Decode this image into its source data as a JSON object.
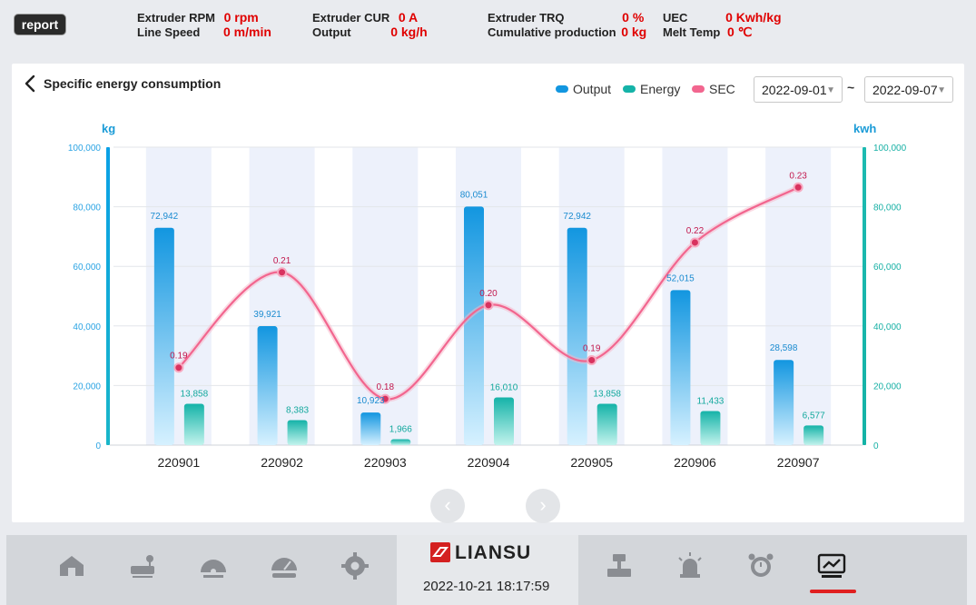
{
  "header": {
    "report_label": "report",
    "stats": [
      {
        "label": "Extruder RPM",
        "value": "0 rpm"
      },
      {
        "label": "Line Speed",
        "value": "0 m/min"
      },
      {
        "label": "Extruder CUR",
        "value": "0 A"
      },
      {
        "label": "Output",
        "value": "0 kg/h"
      },
      {
        "label": "Extruder TRQ",
        "value": "0 %"
      },
      {
        "label": "Cumulative production",
        "value": "0 kg"
      },
      {
        "label": "UEC",
        "value": "0 Kwh/kg"
      },
      {
        "label": "Melt Temp",
        "value": "0 ℃"
      }
    ]
  },
  "page": {
    "title": "Specific energy consumption",
    "back_icon": "chevron-left-icon",
    "legend": [
      "Output",
      "Energy",
      "SEC"
    ],
    "date_from": "2022-09-01",
    "date_to": "2022-09-07",
    "date_separator": "~",
    "prev_icon": "chevron-left-icon",
    "next_icon": "chevron-right-icon"
  },
  "colors": {
    "output": "#1296e0",
    "energy": "#15b3a8",
    "sec": "#f2668f",
    "accent_red": "#e00000"
  },
  "chart_data": {
    "type": "bar",
    "categories": [
      "220901",
      "220902",
      "220903",
      "220904",
      "220905",
      "220906",
      "220907"
    ],
    "series": [
      {
        "name": "Output",
        "type": "bar",
        "axis": "left",
        "values": [
          72942,
          39921,
          10923,
          80051,
          72942,
          52015,
          28598
        ]
      },
      {
        "name": "Energy",
        "type": "bar",
        "axis": "left",
        "values": [
          13858,
          8383,
          1966,
          16010,
          13858,
          11433,
          6577
        ]
      },
      {
        "name": "SEC",
        "type": "line",
        "values": [
          0.19,
          0.21,
          0.18,
          0.2,
          0.19,
          0.22,
          0.23
        ],
        "approx_left_axis_position": [
          26000,
          58000,
          15500,
          47000,
          28500,
          68000,
          86500
        ]
      }
    ],
    "data_labels": {
      "output": [
        "72,942",
        "39,921",
        "10,923",
        "80,051",
        "72,942",
        "52,015",
        "28,598"
      ],
      "energy": [
        "13,858",
        "8,383",
        "1,966",
        "16,010",
        "13,858",
        "11,433",
        "6,577"
      ],
      "sec": [
        "0.19",
        "0.21",
        "0.18",
        "0.20",
        "0.19",
        "0.22",
        "0.23"
      ]
    },
    "y_left": {
      "label": "kg",
      "range": [
        0,
        100000
      ],
      "ticks": [
        "0",
        "20,000",
        "40,000",
        "60,000",
        "80,000",
        "100,000"
      ]
    },
    "y_right": {
      "label": "kwh",
      "range": [
        0,
        100000
      ],
      "ticks": [
        "0",
        "20,000",
        "40,000",
        "60,000",
        "80,000",
        "100,000"
      ]
    },
    "grid": true,
    "legend_position": "top-right"
  },
  "footer": {
    "brand": "LIANSU",
    "datetime": "2022-10-21 18:17:59",
    "nav": [
      "home-icon",
      "extruder-icon",
      "gauge-icon",
      "tachometer-icon",
      "gear-icon",
      "scale-icon",
      "beacon-icon",
      "alarm-clock-icon",
      "trend-chart-icon"
    ]
  }
}
